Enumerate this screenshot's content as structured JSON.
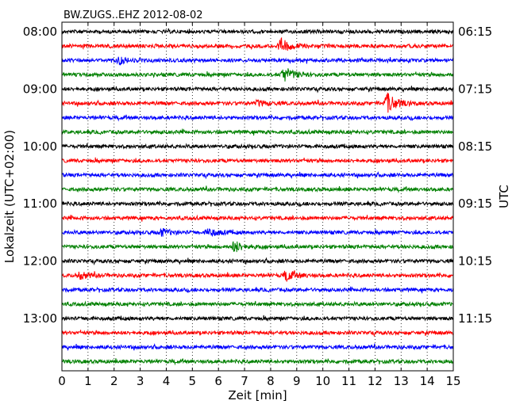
{
  "chart_data": {
    "type": "line",
    "title": "BW.ZUGS..EHZ 2012-08-02",
    "xlabel": "Zeit  [min]",
    "ylabel_left": "Lokalzeit (UTC+02:00)",
    "ylabel_right": "UTC",
    "xlim": [
      0,
      15
    ],
    "x_ticks": [
      "0",
      "1",
      "2",
      "3",
      "4",
      "5",
      "6",
      "7",
      "8",
      "9",
      "10",
      "11",
      "12",
      "13",
      "14",
      "15"
    ],
    "left_tick_labels": [
      "08:00",
      "09:00",
      "10:00",
      "11:00",
      "12:00",
      "13:00"
    ],
    "right_tick_labels": [
      "06:15",
      "07:15",
      "08:15",
      "09:15",
      "10:15",
      "11:15"
    ],
    "trace_colors": [
      "#000000",
      "#ff0000",
      "#0000ff",
      "#008000"
    ],
    "trace_count": 24,
    "trace_interval_min": 15,
    "grid": "vertical dotted",
    "events": [
      {
        "trace": 1,
        "minute": 8.4,
        "amplitude": 2.6
      },
      {
        "trace": 3,
        "minute": 8.5,
        "amplitude": 3.0
      },
      {
        "trace": 5,
        "minute": 12.45,
        "amplitude": 4.0
      },
      {
        "trace": 5,
        "minute": 7.5,
        "amplitude": 1.0
      },
      {
        "trace": 14,
        "minute": 5.6,
        "amplitude": 1.6
      },
      {
        "trace": 14,
        "minute": 3.8,
        "amplitude": 1.3
      },
      {
        "trace": 15,
        "minute": 6.6,
        "amplitude": 2.2
      },
      {
        "trace": 17,
        "minute": 8.6,
        "amplitude": 2.2
      },
      {
        "trace": 17,
        "minute": 0.7,
        "amplitude": 1.2
      },
      {
        "trace": 2,
        "minute": 2.2,
        "amplitude": 1.0
      }
    ]
  }
}
